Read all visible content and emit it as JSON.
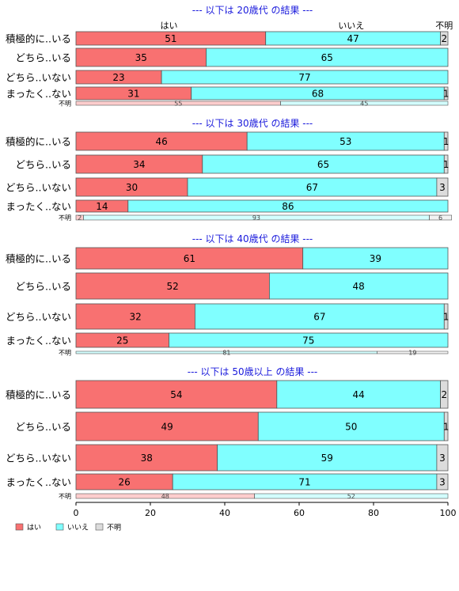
{
  "chart_data": {
    "type": "bar",
    "orientation": "horizontal-stacked-percent",
    "legend": {
      "placement": "bottom-left",
      "entries": [
        "はい",
        "いいえ",
        "不明"
      ]
    },
    "column_headers": [
      "はい",
      "いいえ",
      "不明"
    ],
    "colors": {
      "はい": "#f87171",
      "いいえ": "#80ffff",
      "不明": "#dcdcdc",
      "title": "#1a1adc",
      "bar_stroke": "#555555"
    },
    "xaxis": {
      "ticks": [
        "0",
        "20",
        "40",
        "60",
        "80",
        "100"
      ],
      "xlim": [
        0,
        100
      ]
    },
    "panels": [
      {
        "title": "--- 以下は 20歳代 の結果 ---",
        "categories": [
          "積極的に..いる",
          "どちら..いる",
          "どちら..いない",
          "まったく..ない"
        ],
        "series": [
          {
            "name": "はい",
            "values": [
              51,
              35,
              23,
              31
            ]
          },
          {
            "name": "いいえ",
            "values": [
              47,
              65,
              77,
              68
            ]
          },
          {
            "name": "不明",
            "values": [
              2,
              0,
              0,
              1
            ]
          }
        ],
        "missing_label": "不明",
        "missing_row": [
          55,
          45,
          0
        ]
      },
      {
        "title": "--- 以下は 30歳代 の結果 ---",
        "categories": [
          "積極的に..いる",
          "どちら..いる",
          "どちら..いない",
          "まったく..ない"
        ],
        "series": [
          {
            "name": "はい",
            "values": [
              46,
              34,
              30,
              14
            ]
          },
          {
            "name": "いいえ",
            "values": [
              53,
              65,
              67,
              86
            ]
          },
          {
            "name": "不明",
            "values": [
              1,
              1,
              3,
              0
            ]
          }
        ],
        "missing_label": "不明",
        "missing_row": [
          2,
          93,
          6
        ]
      },
      {
        "title": "--- 以下は 40歳代 の結果 ---",
        "categories": [
          "積極的に..いる",
          "どちら..いる",
          "どちら..いない",
          "まったく..ない"
        ],
        "series": [
          {
            "name": "はい",
            "values": [
              61,
              52,
              32,
              25
            ]
          },
          {
            "name": "いいえ",
            "values": [
              39,
              48,
              67,
              75
            ]
          },
          {
            "name": "不明",
            "values": [
              0,
              0,
              1,
              0
            ]
          }
        ],
        "missing_label": "不明",
        "missing_row": [
          0,
          81,
          19
        ]
      },
      {
        "title": "--- 以下は 50歳以上 の結果 ---",
        "categories": [
          "積極的に..いる",
          "どちら..いる",
          "どちら..いない",
          "まったく..ない"
        ],
        "series": [
          {
            "name": "はい",
            "values": [
              54,
              49,
              38,
              26
            ]
          },
          {
            "name": "いいえ",
            "values": [
              44,
              50,
              59,
              71
            ]
          },
          {
            "name": "不明",
            "values": [
              2,
              1,
              3,
              3
            ]
          }
        ],
        "missing_label": "不明",
        "missing_row": [
          48,
          52,
          0
        ]
      }
    ]
  }
}
